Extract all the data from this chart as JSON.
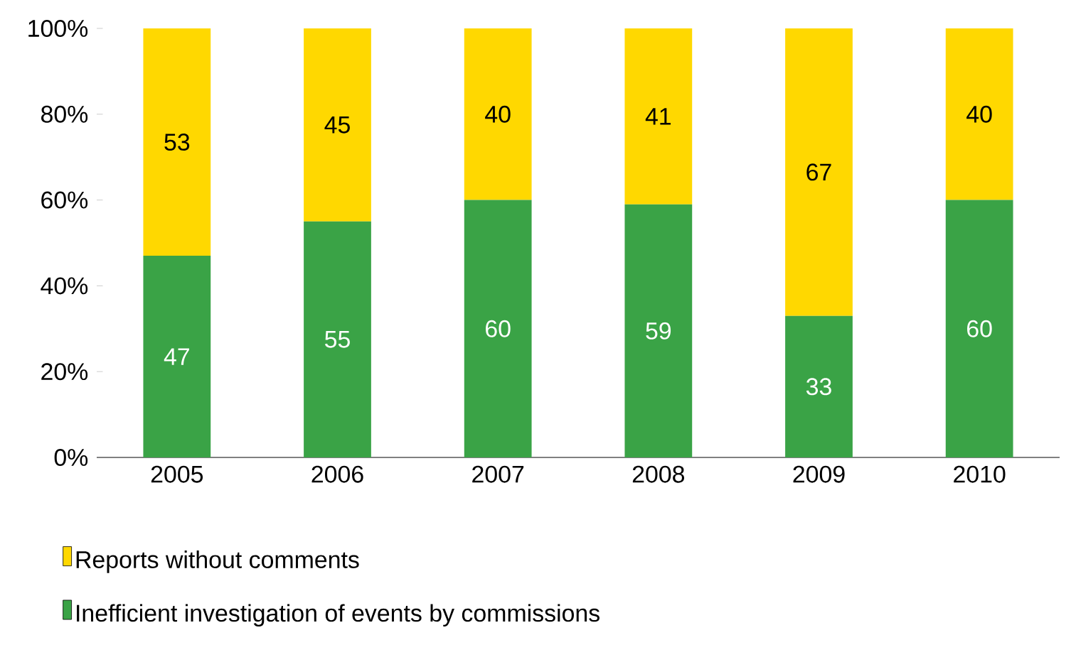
{
  "chart_data": {
    "type": "bar",
    "stacked": true,
    "categories": [
      "2005",
      "2006",
      "2007",
      "2008",
      "2009",
      "2010"
    ],
    "series": [
      {
        "name": "Inefficient investigation of events by commissions",
        "color": "#3aa346",
        "values": [
          47,
          55,
          60,
          59,
          33,
          60
        ]
      },
      {
        "name": "Reports without comments",
        "color": "#ffd800",
        "values": [
          53,
          45,
          40,
          41,
          67,
          40
        ]
      }
    ],
    "ylim": [
      0,
      100
    ],
    "yticks": [
      {
        "value": 0,
        "label": "0%"
      },
      {
        "value": 20,
        "label": "20%"
      },
      {
        "value": 40,
        "label": "40%"
      },
      {
        "value": 60,
        "label": "60%"
      },
      {
        "value": 80,
        "label": "80%"
      },
      {
        "value": 100,
        "label": "100%"
      }
    ],
    "data_labels": true,
    "grid": false,
    "legend": "bottom"
  }
}
